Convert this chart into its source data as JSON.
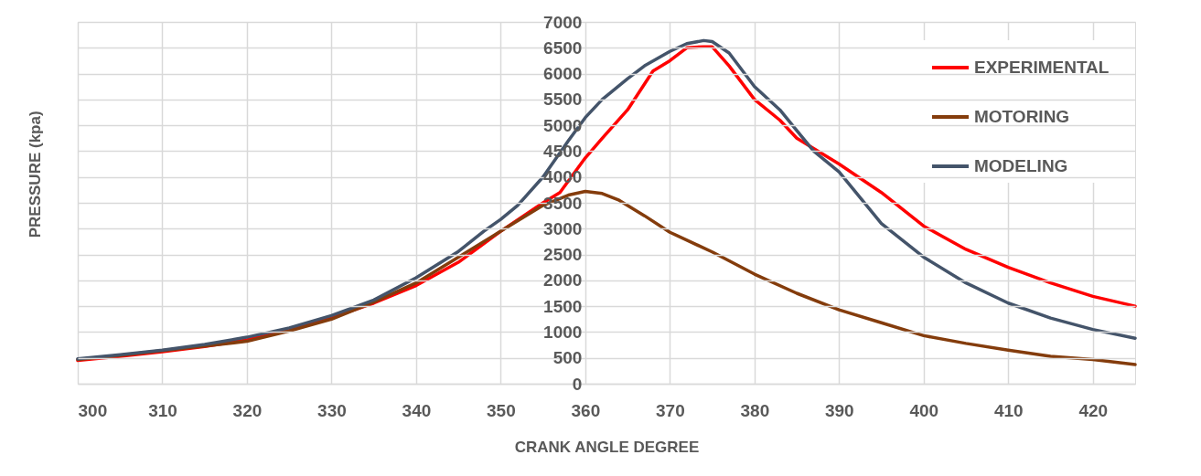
{
  "chart_data": {
    "type": "line",
    "xlabel": "CRANK ANGLE DEGREE",
    "ylabel": "PRESSURE  (kpa)",
    "xlim": [
      300,
      425
    ],
    "xticks": [
      300,
      310,
      320,
      330,
      340,
      350,
      360,
      370,
      380,
      390,
      400,
      410,
      420
    ],
    "ylim": [
      0,
      7000
    ],
    "yticks": [
      0,
      500,
      1000,
      1500,
      2000,
      2500,
      3000,
      3500,
      4000,
      4500,
      5000,
      5500,
      6000,
      6500,
      7000
    ],
    "grid": true,
    "legend": "top right",
    "marker": "none",
    "line_style": "solid",
    "series": [
      {
        "name": "EXPERIMENTAL",
        "color": "#ff0000",
        "x": [
          300,
          305,
          310,
          315,
          320,
          325,
          330,
          335,
          340,
          345,
          350,
          355,
          357,
          360,
          362,
          365,
          368,
          370,
          372,
          374,
          375,
          377,
          380,
          383,
          385,
          390,
          395,
          400,
          405,
          410,
          415,
          420,
          425
        ],
        "values": [
          450,
          530,
          620,
          720,
          850,
          1030,
          1280,
          1560,
          1900,
          2350,
          2950,
          3500,
          3700,
          4370,
          4750,
          5300,
          6050,
          6250,
          6500,
          6520,
          6520,
          6150,
          5500,
          5100,
          4750,
          4250,
          3700,
          3050,
          2600,
          2250,
          1950,
          1690,
          1500
        ]
      },
      {
        "name": "MOTORING",
        "color": "#843c0c",
        "x": [
          300,
          305,
          310,
          315,
          320,
          325,
          330,
          335,
          340,
          345,
          350,
          355,
          358,
          360,
          362,
          364,
          367,
          370,
          375,
          380,
          385,
          390,
          395,
          400,
          405,
          410,
          415,
          420,
          425
        ],
        "values": [
          470,
          550,
          640,
          730,
          820,
          1020,
          1250,
          1580,
          1950,
          2450,
          2950,
          3450,
          3650,
          3720,
          3680,
          3550,
          3250,
          2930,
          2550,
          2120,
          1750,
          1430,
          1180,
          930,
          780,
          650,
          530,
          470,
          370
        ]
      },
      {
        "name": "MODELING",
        "color": "#44546a",
        "x": [
          300,
          305,
          310,
          315,
          320,
          325,
          330,
          335,
          340,
          345,
          348,
          350,
          352,
          355,
          358,
          360,
          362,
          365,
          367,
          370,
          372,
          374,
          375,
          377,
          380,
          383,
          385,
          387,
          390,
          395,
          400,
          405,
          410,
          415,
          420,
          425
        ],
        "values": [
          480,
          560,
          650,
          760,
          900,
          1080,
          1320,
          1620,
          2050,
          2560,
          2950,
          3180,
          3450,
          4000,
          4700,
          5150,
          5500,
          5900,
          6150,
          6430,
          6580,
          6640,
          6620,
          6400,
          5750,
          5300,
          4900,
          4500,
          4100,
          3100,
          2450,
          1950,
          1560,
          1270,
          1050,
          880
        ]
      }
    ]
  }
}
